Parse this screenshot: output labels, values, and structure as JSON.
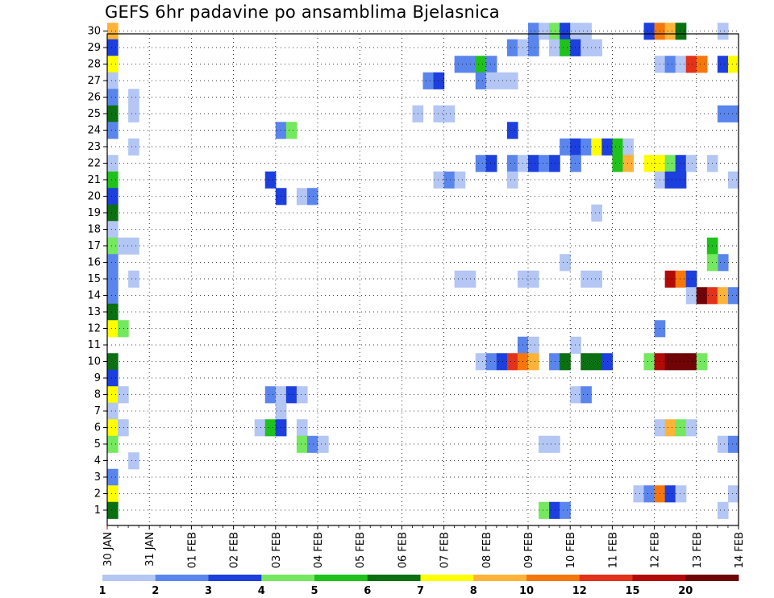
{
  "chart_data": {
    "type": "heatmap",
    "title": "GEFS 6hr padavine po ansamblima Bjelasnica",
    "x_tick_labels": [
      "30 JAN",
      "31 JAN",
      "01 FEB",
      "02 FEB",
      "03 FEB",
      "04 FEB",
      "05 FEB",
      "06 FEB",
      "07 FEB",
      "08 FEB",
      "09 FEB",
      "10 FEB",
      "11 FEB",
      "12 FEB",
      "13 FEB",
      "14 FEB"
    ],
    "y_tick_labels": [
      "1",
      "2",
      "3",
      "4",
      "5",
      "6",
      "7",
      "8",
      "9",
      "10",
      "11",
      "12",
      "13",
      "14",
      "15",
      "16",
      "17",
      "18",
      "19",
      "20",
      "21",
      "22",
      "23",
      "24",
      "25",
      "26",
      "27",
      "28",
      "29",
      "30"
    ],
    "x_unit": "6-hour step (4 steps per day, step 0 = 30 JAN 00)",
    "y_unit": "ensemble member",
    "grid": true,
    "colorbar": {
      "tick_labels": [
        "1",
        "2",
        "3",
        "4",
        "5",
        "6",
        "7",
        "8",
        "10",
        "12",
        "15",
        "20"
      ],
      "bins": [
        {
          "from": 1,
          "to": 2,
          "color": "#b3c6f4"
        },
        {
          "from": 2,
          "to": 3,
          "color": "#5a85ec"
        },
        {
          "from": 3,
          "to": 4,
          "color": "#1c3fde"
        },
        {
          "from": 4,
          "to": 5,
          "color": "#74e85e"
        },
        {
          "from": 5,
          "to": 6,
          "color": "#1ec21a"
        },
        {
          "from": 6,
          "to": 7,
          "color": "#0a7012"
        },
        {
          "from": 7,
          "to": 8,
          "color": "#ffff00"
        },
        {
          "from": 8,
          "to": 10,
          "color": "#fdb338"
        },
        {
          "from": 10,
          "to": 12,
          "color": "#f5770c"
        },
        {
          "from": 12,
          "to": 15,
          "color": "#e2321a"
        },
        {
          "from": 15,
          "to": 20,
          "color": "#b20a08"
        },
        {
          "from": 20,
          "to": null,
          "color": "#700406"
        }
      ]
    },
    "cells": [
      {
        "m": 30,
        "t": 0,
        "v": 9
      },
      {
        "m": 30,
        "t": 40,
        "v": 2
      },
      {
        "m": 30,
        "t": 41,
        "v": 1
      },
      {
        "m": 30,
        "t": 42,
        "v": 4
      },
      {
        "m": 30,
        "t": 43,
        "v": 3
      },
      {
        "m": 30,
        "t": 44,
        "v": 1
      },
      {
        "m": 30,
        "t": 45,
        "v": 1
      },
      {
        "m": 30,
        "t": 51,
        "v": 3
      },
      {
        "m": 30,
        "t": 52,
        "v": 11
      },
      {
        "m": 30,
        "t": 53,
        "v": 9
      },
      {
        "m": 30,
        "t": 54,
        "v": 6
      },
      {
        "m": 30,
        "t": 58,
        "v": 1
      },
      {
        "m": 29,
        "t": 0,
        "v": 3
      },
      {
        "m": 29,
        "t": 38,
        "v": 2
      },
      {
        "m": 29,
        "t": 39,
        "v": 1
      },
      {
        "m": 29,
        "t": 40,
        "v": 2
      },
      {
        "m": 29,
        "t": 42,
        "v": 1
      },
      {
        "m": 29,
        "t": 43,
        "v": 5
      },
      {
        "m": 29,
        "t": 44,
        "v": 3
      },
      {
        "m": 29,
        "t": 45,
        "v": 1
      },
      {
        "m": 29,
        "t": 46,
        "v": 1
      },
      {
        "m": 28,
        "t": 0,
        "v": 7
      },
      {
        "m": 28,
        "t": 33,
        "v": 2
      },
      {
        "m": 28,
        "t": 34,
        "v": 2
      },
      {
        "m": 28,
        "t": 35,
        "v": 5
      },
      {
        "m": 28,
        "t": 36,
        "v": 2
      },
      {
        "m": 28,
        "t": 52,
        "v": 1
      },
      {
        "m": 28,
        "t": 53,
        "v": 2
      },
      {
        "m": 28,
        "t": 54,
        "v": 1
      },
      {
        "m": 28,
        "t": 55,
        "v": 13
      },
      {
        "m": 28,
        "t": 56,
        "v": 11
      },
      {
        "m": 28,
        "t": 58,
        "v": 3
      },
      {
        "m": 28,
        "t": 59,
        "v": 7
      },
      {
        "m": 27,
        "t": 0,
        "v": 1
      },
      {
        "m": 27,
        "t": 30,
        "v": 2
      },
      {
        "m": 27,
        "t": 31,
        "v": 3
      },
      {
        "m": 27,
        "t": 35,
        "v": 2
      },
      {
        "m": 27,
        "t": 36,
        "v": 1
      },
      {
        "m": 27,
        "t": 37,
        "v": 1
      },
      {
        "m": 27,
        "t": 38,
        "v": 1
      },
      {
        "m": 26,
        "t": 0,
        "v": 2
      },
      {
        "m": 26,
        "t": 2,
        "v": 1
      },
      {
        "m": 25,
        "t": 0,
        "v": 6
      },
      {
        "m": 25,
        "t": 2,
        "v": 1
      },
      {
        "m": 25,
        "t": 29,
        "v": 1
      },
      {
        "m": 25,
        "t": 31,
        "v": 1
      },
      {
        "m": 25,
        "t": 32,
        "v": 1
      },
      {
        "m": 25,
        "t": 58,
        "v": 2
      },
      {
        "m": 25,
        "t": 59,
        "v": 2
      },
      {
        "m": 24,
        "t": 0,
        "v": 2
      },
      {
        "m": 24,
        "t": 16,
        "v": 2
      },
      {
        "m": 24,
        "t": 17,
        "v": 4
      },
      {
        "m": 24,
        "t": 38,
        "v": 3
      },
      {
        "m": 23,
        "t": 2,
        "v": 1
      },
      {
        "m": 23,
        "t": 43,
        "v": 2
      },
      {
        "m": 23,
        "t": 44,
        "v": 3
      },
      {
        "m": 23,
        "t": 45,
        "v": 2
      },
      {
        "m": 23,
        "t": 46,
        "v": 7
      },
      {
        "m": 23,
        "t": 47,
        "v": 3
      },
      {
        "m": 23,
        "t": 48,
        "v": 5
      },
      {
        "m": 23,
        "t": 49,
        "v": 1
      },
      {
        "m": 22,
        "t": 0,
        "v": 1
      },
      {
        "m": 22,
        "t": 35,
        "v": 2
      },
      {
        "m": 22,
        "t": 36,
        "v": 3
      },
      {
        "m": 22,
        "t": 38,
        "v": 2
      },
      {
        "m": 22,
        "t": 39,
        "v": 1
      },
      {
        "m": 22,
        "t": 40,
        "v": 3
      },
      {
        "m": 22,
        "t": 41,
        "v": 2
      },
      {
        "m": 22,
        "t": 42,
        "v": 3
      },
      {
        "m": 22,
        "t": 44,
        "v": 2
      },
      {
        "m": 22,
        "t": 48,
        "v": 5
      },
      {
        "m": 22,
        "t": 49,
        "v": 9
      },
      {
        "m": 22,
        "t": 51,
        "v": 7
      },
      {
        "m": 22,
        "t": 52,
        "v": 7
      },
      {
        "m": 22,
        "t": 53,
        "v": 4
      },
      {
        "m": 22,
        "t": 54,
        "v": 3
      },
      {
        "m": 22,
        "t": 55,
        "v": 1
      },
      {
        "m": 22,
        "t": 57,
        "v": 1
      },
      {
        "m": 21,
        "t": 0,
        "v": 5
      },
      {
        "m": 21,
        "t": 15,
        "v": 3
      },
      {
        "m": 21,
        "t": 31,
        "v": 1
      },
      {
        "m": 21,
        "t": 32,
        "v": 2
      },
      {
        "m": 21,
        "t": 33,
        "v": 1
      },
      {
        "m": 21,
        "t": 38,
        "v": 1
      },
      {
        "m": 21,
        "t": 52,
        "v": 1
      },
      {
        "m": 21,
        "t": 53,
        "v": 3
      },
      {
        "m": 21,
        "t": 54,
        "v": 3
      },
      {
        "m": 21,
        "t": 59,
        "v": 1
      },
      {
        "m": 20,
        "t": 0,
        "v": 3
      },
      {
        "m": 20,
        "t": 16,
        "v": 3
      },
      {
        "m": 20,
        "t": 18,
        "v": 1
      },
      {
        "m": 20,
        "t": 19,
        "v": 2
      },
      {
        "m": 19,
        "t": 0,
        "v": 6
      },
      {
        "m": 19,
        "t": 46,
        "v": 1
      },
      {
        "m": 18,
        "t": 0,
        "v": 1
      },
      {
        "m": 17,
        "t": 0,
        "v": 4
      },
      {
        "m": 17,
        "t": 1,
        "v": 1
      },
      {
        "m": 17,
        "t": 2,
        "v": 1
      },
      {
        "m": 17,
        "t": 57,
        "v": 5
      },
      {
        "m": 16,
        "t": 0,
        "v": 2
      },
      {
        "m": 16,
        "t": 43,
        "v": 1
      },
      {
        "m": 16,
        "t": 58,
        "v": 2
      },
      {
        "m": 16,
        "t": 57,
        "v": 4
      },
      {
        "m": 15,
        "t": 0,
        "v": 2
      },
      {
        "m": 15,
        "t": 2,
        "v": 1
      },
      {
        "m": 15,
        "t": 33,
        "v": 1
      },
      {
        "m": 15,
        "t": 34,
        "v": 1
      },
      {
        "m": 15,
        "t": 39,
        "v": 1
      },
      {
        "m": 15,
        "t": 40,
        "v": 1
      },
      {
        "m": 15,
        "t": 45,
        "v": 1
      },
      {
        "m": 15,
        "t": 46,
        "v": 1
      },
      {
        "m": 15,
        "t": 53,
        "v": 15
      },
      {
        "m": 15,
        "t": 54,
        "v": 11
      },
      {
        "m": 15,
        "t": 55,
        "v": 3
      },
      {
        "m": 14,
        "t": 0,
        "v": 2
      },
      {
        "m": 14,
        "t": 55,
        "v": 1
      },
      {
        "m": 14,
        "t": 56,
        "v": 20
      },
      {
        "m": 14,
        "t": 57,
        "v": 13
      },
      {
        "m": 14,
        "t": 58,
        "v": 9
      },
      {
        "m": 14,
        "t": 59,
        "v": 2
      },
      {
        "m": 13,
        "t": 0,
        "v": 6
      },
      {
        "m": 12,
        "t": 0,
        "v": 7
      },
      {
        "m": 12,
        "t": 1,
        "v": 4
      },
      {
        "m": 12,
        "t": 52,
        "v": 2
      },
      {
        "m": 11,
        "t": 39,
        "v": 2
      },
      {
        "m": 11,
        "t": 40,
        "v": 1
      },
      {
        "m": 11,
        "t": 44,
        "v": 1
      },
      {
        "m": 10,
        "t": 0,
        "v": 6
      },
      {
        "m": 10,
        "t": 35,
        "v": 1
      },
      {
        "m": 10,
        "t": 36,
        "v": 2
      },
      {
        "m": 10,
        "t": 37,
        "v": 3
      },
      {
        "m": 10,
        "t": 38,
        "v": 12
      },
      {
        "m": 10,
        "t": 39,
        "v": 11
      },
      {
        "m": 10,
        "t": 40,
        "v": 9
      },
      {
        "m": 10,
        "t": 42,
        "v": 2
      },
      {
        "m": 10,
        "t": 43,
        "v": 6
      },
      {
        "m": 10,
        "t": 45,
        "v": 6
      },
      {
        "m": 10,
        "t": 46,
        "v": 6
      },
      {
        "m": 10,
        "t": 47,
        "v": 3
      },
      {
        "m": 10,
        "t": 51,
        "v": 4
      },
      {
        "m": 10,
        "t": 52,
        "v": 15
      },
      {
        "m": 10,
        "t": 53,
        "v": 20
      },
      {
        "m": 10,
        "t": 54,
        "v": 20
      },
      {
        "m": 10,
        "t": 55,
        "v": 20
      },
      {
        "m": 10,
        "t": 56,
        "v": 4
      },
      {
        "m": 9,
        "t": 0,
        "v": 3
      },
      {
        "m": 8,
        "t": 0,
        "v": 7
      },
      {
        "m": 8,
        "t": 1,
        "v": 1
      },
      {
        "m": 8,
        "t": 15,
        "v": 2
      },
      {
        "m": 8,
        "t": 16,
        "v": 1
      },
      {
        "m": 8,
        "t": 17,
        "v": 3
      },
      {
        "m": 8,
        "t": 18,
        "v": 1
      },
      {
        "m": 8,
        "t": 44,
        "v": 1
      },
      {
        "m": 8,
        "t": 45,
        "v": 2
      },
      {
        "m": 7,
        "t": 0,
        "v": 1
      },
      {
        "m": 7,
        "t": 16,
        "v": 1
      },
      {
        "m": 6,
        "t": 0,
        "v": 7
      },
      {
        "m": 6,
        "t": 1,
        "v": 1
      },
      {
        "m": 6,
        "t": 14,
        "v": 1
      },
      {
        "m": 6,
        "t": 15,
        "v": 5
      },
      {
        "m": 6,
        "t": 16,
        "v": 3
      },
      {
        "m": 6,
        "t": 18,
        "v": 1
      },
      {
        "m": 6,
        "t": 52,
        "v": 1
      },
      {
        "m": 6,
        "t": 53,
        "v": 9
      },
      {
        "m": 6,
        "t": 54,
        "v": 4
      },
      {
        "m": 6,
        "t": 55,
        "v": 1
      },
      {
        "m": 5,
        "t": 0,
        "v": 4
      },
      {
        "m": 5,
        "t": 18,
        "v": 4
      },
      {
        "m": 5,
        "t": 19,
        "v": 2
      },
      {
        "m": 5,
        "t": 20,
        "v": 1
      },
      {
        "m": 5,
        "t": 41,
        "v": 1
      },
      {
        "m": 5,
        "t": 42,
        "v": 1
      },
      {
        "m": 5,
        "t": 58,
        "v": 1
      },
      {
        "m": 5,
        "t": 59,
        "v": 2
      },
      {
        "m": 4,
        "t": 2,
        "v": 1
      },
      {
        "m": 3,
        "t": 0,
        "v": 2
      },
      {
        "m": 2,
        "t": 0,
        "v": 7
      },
      {
        "m": 2,
        "t": 50,
        "v": 1
      },
      {
        "m": 2,
        "t": 51,
        "v": 2
      },
      {
        "m": 2,
        "t": 52,
        "v": 11
      },
      {
        "m": 2,
        "t": 53,
        "v": 3
      },
      {
        "m": 2,
        "t": 54,
        "v": 1
      },
      {
        "m": 2,
        "t": 59,
        "v": 1
      },
      {
        "m": 1,
        "t": 0,
        "v": 6
      },
      {
        "m": 1,
        "t": 41,
        "v": 4
      },
      {
        "m": 1,
        "t": 42,
        "v": 3
      },
      {
        "m": 1,
        "t": 43,
        "v": 2
      },
      {
        "m": 1,
        "t": 58,
        "v": 1
      }
    ]
  }
}
